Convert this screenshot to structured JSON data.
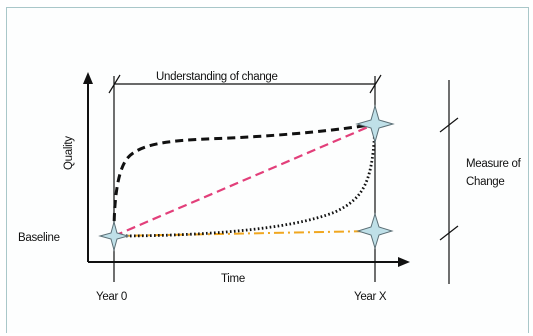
{
  "labels": {
    "span_label": "Understanding of change",
    "y_axis_label": "Quality",
    "x_axis_label": "Time",
    "baseline_label": "Baseline",
    "year_start_label": "Year 0",
    "year_end_label": "Year X",
    "measure_label_line1": "Measure of",
    "measure_label_line2": "Change"
  },
  "colors": {
    "frame_border": "#a9c7c9",
    "dashed_curve": "#111111",
    "dotted_curve": "#111111",
    "diagonal_line": "#e23f7a",
    "baseline_line": "#f0a720",
    "star_fill": "#bfe0e8",
    "axis": "#111111"
  }
}
